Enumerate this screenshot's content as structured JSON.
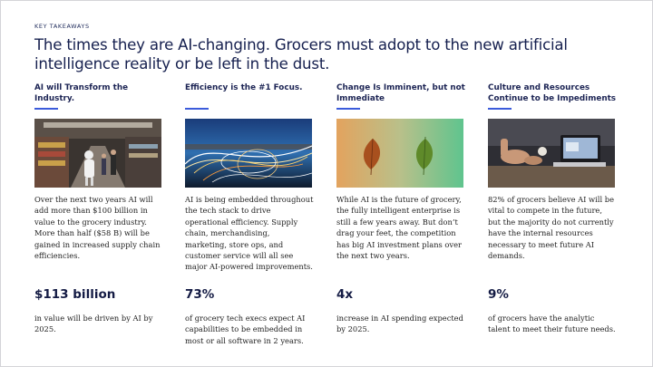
{
  "eyebrow": "KEY TAKEAWAYS",
  "title": "The times they are AI-changing. Grocers must adopt to the new artificial intelligence reality or be left in the dust.",
  "accent_color": "#3b5bdb",
  "columns": [
    {
      "heading": "AI will Transform the Industry.",
      "image": "robot-in-grocery-store-photo",
      "body": "Over the next two years AI will add more than $100 billion in value to the grocery industry. More than half ($58 B) will be gained in increased supply chain efficiencies.",
      "stat": "$113 billion",
      "stat_desc": "in value will be driven by AI by 2025."
    },
    {
      "heading": "Efficiency is the #1 Focus.",
      "image": "light-trails-photo",
      "body": "AI is being embedded throughout the tech stack to drive operational efficiency. Supply chain, merchandising, marketing, store ops, and customer service will all see major AI-powered improvements.",
      "stat": "73%",
      "stat_desc": "of grocery tech execs expect AI capabilities to be embedded in most or all software in 2 years."
    },
    {
      "heading": "Change Is Imminent, but not Immediate",
      "image": "autumn-and-green-leaves-photo",
      "body": "While AI is the future of grocery, the fully intelligent enterprise is still a few years away. But don’t drag your feet, the competition has big AI investment plans over the next two years.",
      "stat": "4x",
      "stat_desc": "increase in AI spending expected by 2025."
    },
    {
      "heading": "Culture and Resources Continue to be Impediments",
      "image": "person-at-laptop-photo",
      "body": "82% of grocers believe AI will be vital to compete in the future, but the majority do not currently have the internal resources necessary to meet future AI demands.",
      "stat": "9%",
      "stat_desc": "of grocers have the analytic talent to meet their future needs."
    }
  ]
}
